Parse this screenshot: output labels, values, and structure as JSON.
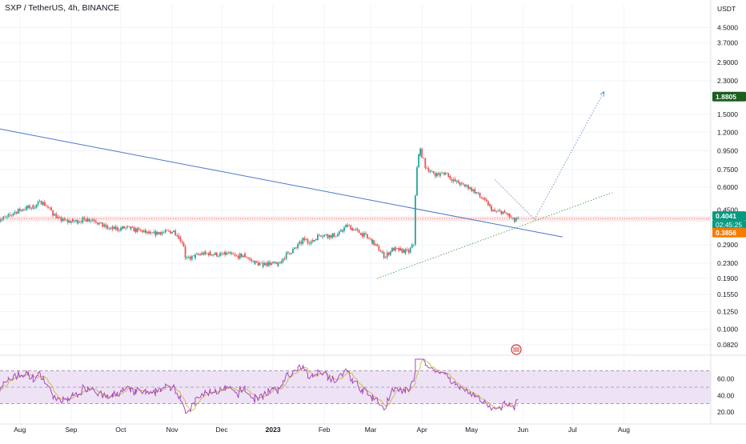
{
  "header": {
    "symbol": "SXP / TetherUS, 4h, BINANCE"
  },
  "price_axis": {
    "currency": "USDT",
    "ticks": [
      "4.5000",
      "3.7000",
      "2.9000",
      "2.3000",
      "1.8805",
      "1.5000",
      "1.2000",
      "0.9500",
      "0.7500",
      "0.6000",
      "0.4500",
      "0.4041",
      "0.3856",
      "0.2900",
      "0.2300",
      "0.1900",
      "0.1550",
      "0.1250",
      "0.1000",
      "0.0820"
    ],
    "tick_values": [
      4.5,
      3.7,
      2.9,
      2.3,
      1.8805,
      1.5,
      1.2,
      0.95,
      0.75,
      0.6,
      0.45,
      0.4041,
      0.3856,
      0.29,
      0.23,
      0.19,
      0.155,
      0.125,
      0.1,
      0.082
    ],
    "current_price": "0.4041",
    "countdown": "02:45:25",
    "alert_price": "0.3856",
    "target_price": "1.8805"
  },
  "rsi_axis": {
    "ticks": [
      "60.00",
      "40.00",
      "20.00"
    ],
    "tick_values": [
      60,
      40,
      20
    ],
    "upper_band": 70,
    "lower_band": 30,
    "mid": 50
  },
  "time_axis": {
    "labels": [
      "Aug",
      "Sep",
      "Oct",
      "Nov",
      "Dec",
      "2023",
      "Feb",
      "Mar",
      "Apr",
      "May",
      "Jun",
      "Jul",
      "Aug"
    ]
  },
  "colors": {
    "up": "#26a69a",
    "down": "#ef5350",
    "trendline": "#4a78c8",
    "projection": "#5b8ed6",
    "support": "#43a047",
    "rsi": "#ab47bc",
    "rsi_ma": "#c7b324",
    "rsi_band": "#ede3f5",
    "price_tag": "#089981",
    "alert_tag": "#f57c00",
    "target_tag": "#1b5e20"
  },
  "chart_data": {
    "type": "candlestick",
    "symbol": "SXP / TetherUS",
    "interval": "4h",
    "exchange": "BINANCE",
    "scale": "log",
    "ylim": [
      0.075,
      5.2
    ],
    "x": [
      "2022-07-20",
      "2022-07-25",
      "2022-07-30",
      "2022-08-05",
      "2022-08-10",
      "2022-08-15",
      "2022-08-20",
      "2022-08-25",
      "2022-08-30",
      "2022-09-05",
      "2022-09-10",
      "2022-09-15",
      "2022-09-20",
      "2022-09-25",
      "2022-09-30",
      "2022-10-05",
      "2022-10-10",
      "2022-10-15",
      "2022-10-20",
      "2022-10-25",
      "2022-10-30",
      "2022-11-03",
      "2022-11-08",
      "2022-11-10",
      "2022-11-15",
      "2022-11-20",
      "2022-11-25",
      "2022-12-01",
      "2022-12-05",
      "2022-12-10",
      "2022-12-15",
      "2022-12-20",
      "2022-12-25",
      "2022-12-30",
      "2023-01-05",
      "2023-01-10",
      "2023-01-15",
      "2023-01-20",
      "2023-01-25",
      "2023-01-30",
      "2023-02-05",
      "2023-02-10",
      "2023-02-15",
      "2023-02-20",
      "2023-02-25",
      "2023-03-01",
      "2023-03-05",
      "2023-03-10",
      "2023-03-15",
      "2023-03-20",
      "2023-03-25",
      "2023-03-28",
      "2023-03-29",
      "2023-03-30",
      "2023-04-01",
      "2023-04-03",
      "2023-04-07",
      "2023-04-12",
      "2023-04-16",
      "2023-04-20",
      "2023-04-25",
      "2023-04-30",
      "2023-05-05",
      "2023-05-10",
      "2023-05-15",
      "2023-05-20",
      "2023-05-24",
      "2023-05-27",
      "2023-05-30"
    ],
    "close": [
      0.4,
      0.41,
      0.44,
      0.46,
      0.47,
      0.5,
      0.45,
      0.4,
      0.39,
      0.39,
      0.4,
      0.4,
      0.37,
      0.355,
      0.355,
      0.36,
      0.35,
      0.345,
      0.33,
      0.34,
      0.34,
      0.345,
      0.3,
      0.24,
      0.25,
      0.26,
      0.26,
      0.255,
      0.26,
      0.25,
      0.255,
      0.235,
      0.225,
      0.23,
      0.225,
      0.26,
      0.275,
      0.31,
      0.3,
      0.33,
      0.325,
      0.33,
      0.37,
      0.35,
      0.33,
      0.31,
      0.285,
      0.25,
      0.275,
      0.27,
      0.265,
      0.3,
      0.55,
      0.88,
      0.95,
      0.8,
      0.72,
      0.7,
      0.72,
      0.66,
      0.62,
      0.6,
      0.55,
      0.5,
      0.44,
      0.44,
      0.42,
      0.39,
      0.4041
    ],
    "rsi_range": [
      15,
      85
    ],
    "annotations": [
      {
        "type": "trendline",
        "from": [
          "2022-07-20",
          1.25
        ],
        "to": [
          "2023-06-25",
          0.32
        ]
      },
      {
        "type": "support_line",
        "from": [
          "2023-03-05",
          0.19
        ],
        "to": [
          "2023-07-25",
          0.56
        ]
      },
      {
        "type": "projection",
        "points": [
          [
            "2023-05-15",
            0.66
          ],
          [
            "2023-06-08",
            0.4
          ],
          [
            "2023-07-20",
            2.0
          ]
        ]
      },
      {
        "type": "price_zone",
        "from": 0.39,
        "to": 0.415
      }
    ]
  }
}
